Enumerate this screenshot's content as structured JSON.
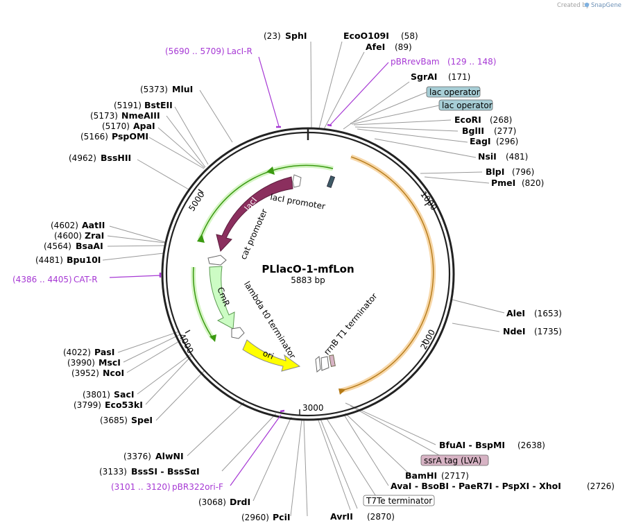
{
  "credit": {
    "prefix": "Created by",
    "brand": "SnapGene"
  },
  "plasmid": {
    "name": "PLlacO-1-mfLon",
    "size_label": "5883 bp"
  },
  "ticks": [
    "1000",
    "2000",
    "3000",
    "4000",
    "5000"
  ],
  "sites_right": [
    {
      "name": "SphI",
      "pos": "(23)",
      "posFirst": true
    },
    {
      "name": "EcoO109I",
      "pos": "(58)"
    },
    {
      "name": "AfeI",
      "pos": "(89)"
    },
    {
      "name": "SgrAI",
      "pos": "(171)"
    },
    {
      "name": "EcoRI",
      "pos": "(268)"
    },
    {
      "name": "BglII",
      "pos": "(277)"
    },
    {
      "name": "EagI",
      "pos": "(296)"
    },
    {
      "name": "NsiI",
      "pos": "(481)"
    },
    {
      "name": "BlpI",
      "pos": "(796)"
    },
    {
      "name": "PmeI",
      "pos": "(820)"
    },
    {
      "name": "AleI",
      "pos": "(1653)"
    },
    {
      "name": "NdeI",
      "pos": "(1735)"
    },
    {
      "name": "BfuAI - BspMI",
      "pos": "(2638)"
    },
    {
      "name": "BamHI",
      "pos": "(2717)"
    },
    {
      "name": "AvaI - BsoBI - PaeR7I - PspXI - XhoI",
      "pos": "(2726)"
    },
    {
      "name": "AvrII",
      "pos": "(2870)"
    }
  ],
  "sites_left": [
    {
      "name": "MluI",
      "pos": "(5373)"
    },
    {
      "name": "BstEII",
      "pos": "(5191)"
    },
    {
      "name": "NmeAIII",
      "pos": "(5173)"
    },
    {
      "name": "ApaI",
      "pos": "(5170)"
    },
    {
      "name": "PspOMI",
      "pos": "(5166)"
    },
    {
      "name": "BssHII",
      "pos": "(4962)"
    },
    {
      "name": "AatII",
      "pos": "(4602)"
    },
    {
      "name": "ZraI",
      "pos": "(4600)"
    },
    {
      "name": "BsaAI",
      "pos": "(4564)"
    },
    {
      "name": "Bpu10I",
      "pos": "(4481)"
    },
    {
      "name": "PasI",
      "pos": "(4022)"
    },
    {
      "name": "MscI",
      "pos": "(3990)"
    },
    {
      "name": "NcoI",
      "pos": "(3952)"
    },
    {
      "name": "SacI",
      "pos": "(3801)"
    },
    {
      "name": "Eco53kI",
      "pos": "(3799)"
    },
    {
      "name": "SpeI",
      "pos": "(3685)"
    },
    {
      "name": "AlwNI",
      "pos": "(3376)"
    },
    {
      "name": "BssSI - BssSαI",
      "pos": "(3133)"
    },
    {
      "name": "DrdI",
      "pos": "(3068)"
    },
    {
      "name": "PciI",
      "pos": "(2960)"
    }
  ],
  "primers": [
    {
      "name": "LacI-R",
      "range": "(5690 .. 5709)"
    },
    {
      "name": "pBRrevBam",
      "range": "(129 .. 148)"
    },
    {
      "name": "CAT-R",
      "range": "(4386 .. 4405)"
    },
    {
      "name": "pBR322ori-F",
      "range": "(3101 .. 3120)"
    }
  ],
  "boxed_features": [
    {
      "name": "lac operator",
      "color": "#a7ced6"
    },
    {
      "name": "lac operator",
      "color": "#a7ced6"
    },
    {
      "name": "ssrA tag (LVA)",
      "color": "#d7b3c4"
    },
    {
      "name": "T7Te terminator",
      "color": "#ffffff"
    }
  ],
  "features": {
    "laci": "lacI",
    "laci_promoter": "lacI promoter",
    "cat_promoter": "cat promoter",
    "cmr": "CmR",
    "lambda_t0": "lambda t0 terminator",
    "ori": "ori",
    "rrnb": "rrnB T1 terminator"
  },
  "colors": {
    "laci": "#8b2f5e",
    "cmr": "#ccfcc4",
    "ori": "#ffff00",
    "green_arc": "#3a9a10",
    "orange_arc": "#f5c98a",
    "primer": "#a638d4",
    "backbone": "#222222"
  }
}
